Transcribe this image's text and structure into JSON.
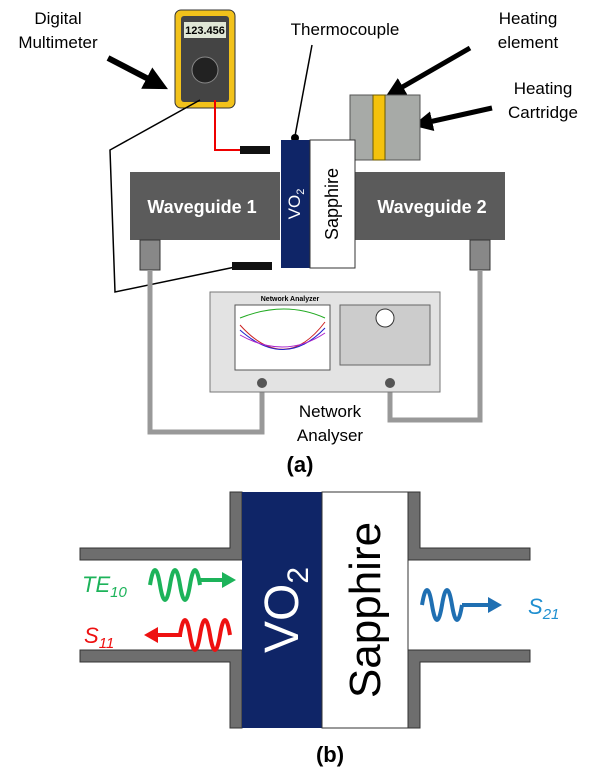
{
  "panel_a": {
    "multimeter": {
      "label": [
        "Digital",
        "Multimeter"
      ],
      "display": "123.456"
    },
    "thermocouple": "Thermocouple",
    "heating_element": [
      "Heating",
      "element"
    ],
    "heating_cartridge": [
      "Heating",
      "Cartridge"
    ],
    "waveguide_1": "Waveguide 1",
    "waveguide_2": "Waveguide 2",
    "vo2": {
      "main": "VO",
      "sub": "2"
    },
    "sapphire": "Sapphire",
    "network_analyzer_screen": "Network Analyzer",
    "network_analyser": [
      "Network",
      "Analyser"
    ],
    "caption": "(a)"
  },
  "panel_b": {
    "vo2": {
      "main": "VO",
      "sub": "2"
    },
    "sapphire": "Sapphire",
    "te10": {
      "main": "TE",
      "sub": "10"
    },
    "s11": {
      "main": "S",
      "sub": "11"
    },
    "s21": {
      "main": "S",
      "sub": "21"
    },
    "caption": "(b)"
  }
}
